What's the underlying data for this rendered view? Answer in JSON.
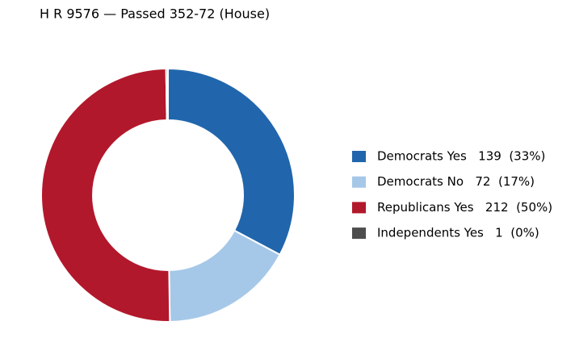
{
  "chart_data": {
    "type": "pie",
    "title": "H R 9576 — Passed 352-72 (House)",
    "categories": [
      "Democrats Yes",
      "Democrats No",
      "Republicans Yes",
      "Independents Yes"
    ],
    "values": [
      139,
      72,
      212,
      1
    ],
    "legend_labels": [
      "Democrats Yes   139  (33%)",
      "Democrats No   72  (17%)",
      "Republicans Yes   212  (50%)",
      "Independents Yes   1  (0%)"
    ],
    "colors": [
      "#2166ac",
      "#a6c8e8",
      "#b2182b",
      "#4d4d4d"
    ],
    "donut": true,
    "legend": "right"
  }
}
